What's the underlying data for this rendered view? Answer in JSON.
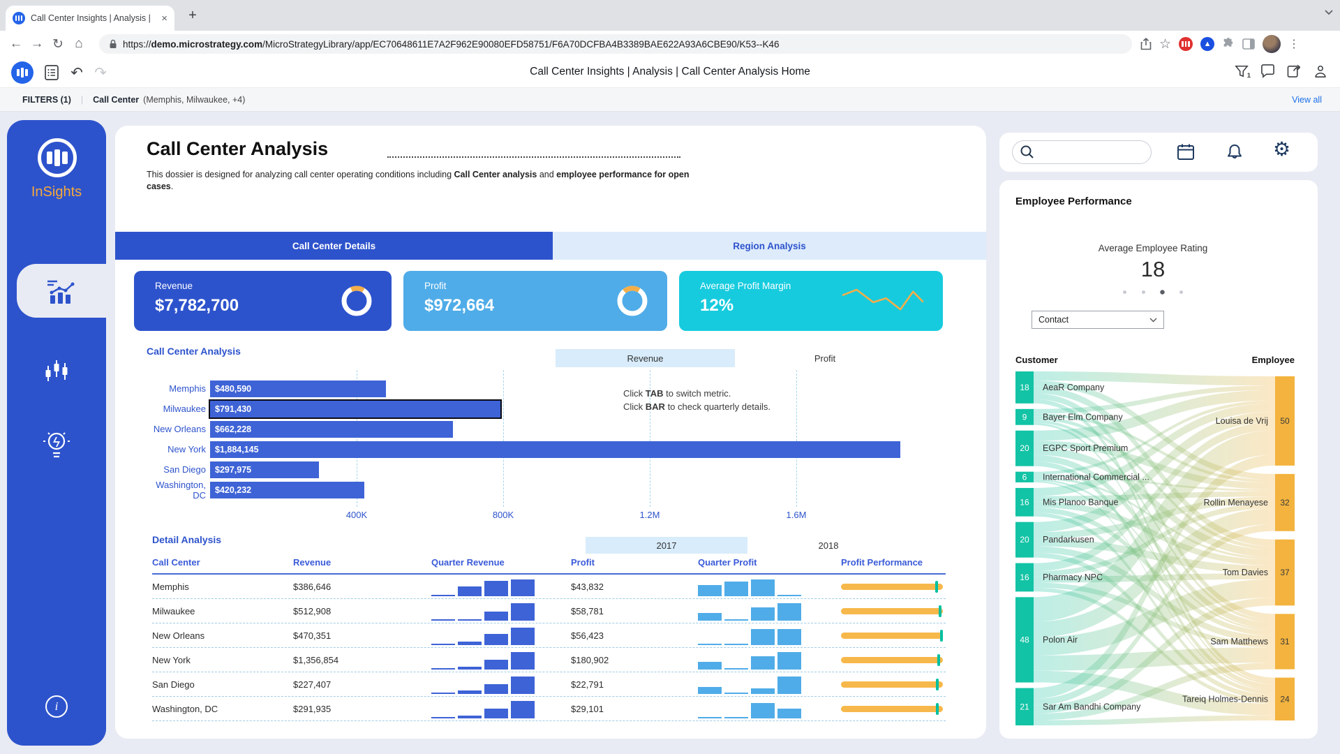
{
  "browser": {
    "tab_title": "Call Center Insights | Analysis |",
    "url_scheme": "https://",
    "url_domain": "demo.microstrategy.com",
    "url_path": "/MicroStrategyLibrary/app/EC70648611E7A2F962E90080EFD58751/F6A70DCFBA4B3389BAE622A93A6CBE90/K53--K46"
  },
  "glyphs": {
    "back": "←",
    "forward": "→",
    "reload": "↻",
    "home": "⌂",
    "star": "☆",
    "menu_dots": "⋮",
    "new_tab": "+",
    "close_tab": "×",
    "undo": "↶",
    "redo": "↷",
    "gear": "⚙"
  },
  "app_header": {
    "title": "Call Center Insights | Analysis | Call Center Analysis Home",
    "filter_count": "1"
  },
  "filter_bar": {
    "label": "FILTERS (1)",
    "divider": "|",
    "filter_name": "Call Center",
    "filter_values": "(Memphis, Milwaukee, +4)",
    "view_all": "View all"
  },
  "sidebar": {
    "brand": "InSights"
  },
  "main": {
    "title": "Call Center Analysis",
    "desc_pre": "This dossier is designed for analyzing call center operating conditions including ",
    "desc_bold1": "Call Center analysis",
    "desc_mid": " and ",
    "desc_bold2": "employee performance for open cases",
    "desc_suffix": ".",
    "tabs": [
      {
        "label": "Call Center Details"
      },
      {
        "label": "Region Analysis"
      }
    ],
    "kpis": [
      {
        "label": "Revenue",
        "value": "$7,782,700",
        "color": "#2D53CC",
        "viz": "donut",
        "donut": {
          "fraction": 0.16,
          "rotate": -115
        }
      },
      {
        "label": "Profit",
        "value": "$972,664",
        "color": "#4FACE8",
        "viz": "donut",
        "donut": {
          "fraction": 0.2,
          "rotate": -130
        }
      },
      {
        "label": "Average Profit Margin",
        "value": "12%",
        "color": "#17CBDE",
        "viz": "sparkline",
        "spark": [
          [
            0,
            0.28
          ],
          [
            0.17,
            0.08
          ],
          [
            0.38,
            0.55
          ],
          [
            0.54,
            0.4
          ],
          [
            0.72,
            0.82
          ],
          [
            0.88,
            0.15
          ],
          [
            1,
            0.52
          ]
        ]
      }
    ]
  },
  "right_panel": {
    "section_title": "Employee Performance",
    "metric_label": "Average Employee Rating",
    "metric_value": "18",
    "dots_count": 4,
    "dots_active": 2,
    "selector_value": "Contact"
  },
  "colors": {
    "primary_blue": "#2D53CC",
    "bar_blue": "#3E63D6",
    "light_blue_tab": "#DDEBFB",
    "quarter_profit_blue": "#4FACE8",
    "kpi_margin_cyan": "#17CBDE",
    "accent_orange": "#F3AE4A",
    "perf_orange": "#F7B84B",
    "perf_tick_teal": "#00BFA0",
    "sankey_teal": "#12C3A5",
    "sankey_orange": "#F3B33E",
    "link_blue": "#1B6FE8"
  },
  "chart_data": [
    {
      "type": "bar",
      "title": "Call Center Analysis",
      "orientation": "horizontal",
      "metric_tabs": [
        "Revenue",
        "Profit"
      ],
      "active_metric": "Revenue",
      "categories": [
        "Memphis",
        "Milwaukee",
        "New Orleans",
        "New York",
        "San Diego",
        "Washington, DC"
      ],
      "values": [
        480590,
        791430,
        662228,
        1884145,
        297975,
        420232
      ],
      "value_labels": [
        "$480,590",
        "$791,430",
        "$662,228",
        "$1,884,145",
        "$297,975",
        "$420,232"
      ],
      "selected_category": "Milwaukee",
      "x_ticks": [
        "400K",
        "800K",
        "1.2M",
        "1.6M"
      ],
      "x_tick_values": [
        400000,
        800000,
        1200000,
        1600000
      ],
      "xlim": [
        0,
        2000000
      ],
      "grid": "dashed",
      "note_line1_pre": "Click ",
      "note_line1_bold": "TAB",
      "note_line1_post": " to switch metric.",
      "note_line2_pre": "Click ",
      "note_line2_bold": "BAR",
      "note_line2_post": " to check quarterly details."
    },
    {
      "type": "table",
      "title": "Detail Analysis",
      "year_tabs": [
        "2017",
        "2018"
      ],
      "active_year": "2017",
      "columns": [
        "Call Center",
        "Revenue",
        "Quarter Revenue",
        "Profit",
        "Quarter Profit",
        "Profit Performance"
      ],
      "rows": [
        {
          "call_center": "Memphis",
          "revenue": "$386,646",
          "quarter_revenue": [
            0.05,
            0.55,
            0.85,
            0.92
          ],
          "profit": "$43,832",
          "quarter_profit": [
            0.6,
            0.8,
            0.92,
            0.05
          ],
          "profit_performance": 0.95
        },
        {
          "call_center": "Milwaukee",
          "revenue": "$512,908",
          "quarter_revenue": [
            0.05,
            0.06,
            0.5,
            0.95
          ],
          "profit": "$58,781",
          "quarter_profit": [
            0.42,
            0.05,
            0.75,
            0.95
          ],
          "profit_performance": 0.985
        },
        {
          "call_center": "New Orleans",
          "revenue": "$470,351",
          "quarter_revenue": [
            0.05,
            0.2,
            0.6,
            0.95
          ],
          "profit": "$56,423",
          "quarter_profit": [
            0.05,
            0.05,
            0.9,
            0.9
          ],
          "profit_performance": 1.0
        },
        {
          "call_center": "New York",
          "revenue": "$1,356,854",
          "quarter_revenue": [
            0.06,
            0.16,
            0.55,
            0.95
          ],
          "profit": "$180,902",
          "quarter_profit": [
            0.42,
            0.05,
            0.72,
            0.95
          ],
          "profit_performance": 0.97
        },
        {
          "call_center": "San Diego",
          "revenue": "$227,407",
          "quarter_revenue": [
            0.05,
            0.2,
            0.52,
            0.95
          ],
          "profit": "$22,791",
          "quarter_profit": [
            0.38,
            0.04,
            0.3,
            0.95
          ],
          "profit_performance": 0.96
        },
        {
          "call_center": "Washington, DC",
          "revenue": "$291,935",
          "quarter_revenue": [
            0.02,
            0.14,
            0.55,
            0.95
          ],
          "profit": "$29,101",
          "quarter_profit": [
            0.02,
            0.04,
            0.85,
            0.55
          ],
          "profit_performance": 0.96
        }
      ]
    },
    {
      "type": "sankey",
      "left_header": "Customer",
      "right_header": "Employee",
      "left_nodes": [
        {
          "label": "AeaR Company",
          "value": 18
        },
        {
          "label": "Bayer Elm Company",
          "value": 9
        },
        {
          "label": "EGPC Sport Premium",
          "value": 20
        },
        {
          "label": "International Commercial ...",
          "value": 6
        },
        {
          "label": "Mis Planoo Banque",
          "value": 16
        },
        {
          "label": "Pandarkusen",
          "value": 20
        },
        {
          "label": "Pharmacy NPC",
          "value": 16
        },
        {
          "label": "Polon Air",
          "value": 48
        },
        {
          "label": "Sar Am Bandhi Company",
          "value": 21
        }
      ],
      "right_nodes": [
        {
          "label": "Louisa de Vrij",
          "value": 50
        },
        {
          "label": "Rollin Menayese",
          "value": 32
        },
        {
          "label": "Tom Davies",
          "value": 37
        },
        {
          "label": "Sam Matthews",
          "value": 31
        },
        {
          "label": "Tareiq Holmes-Dennis",
          "value": 24
        }
      ]
    }
  ]
}
